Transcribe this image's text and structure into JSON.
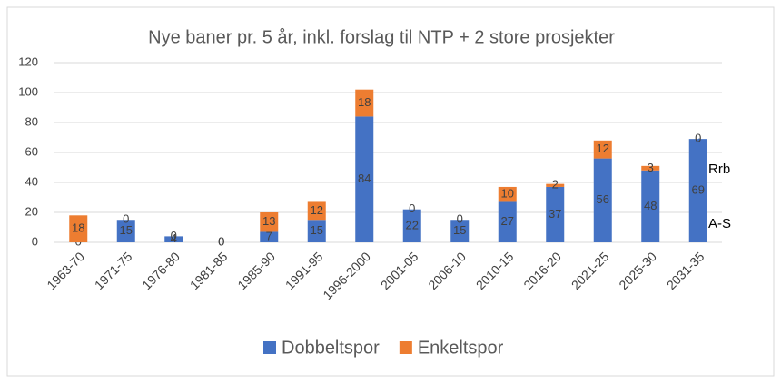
{
  "chart_data": {
    "type": "bar",
    "stacked": true,
    "title": "Nye baner pr. 5 år, inkl. forslag til NTP + 2 store prosjekter",
    "categories": [
      "1963-70",
      "1971-75",
      "1976-80",
      "1981-85",
      "1985-90",
      "1991-95",
      "1996-2000",
      "2001-05",
      "2006-10",
      "2010-15",
      "2016-20",
      "2021-25",
      "2025-30",
      "2031-35"
    ],
    "series": [
      {
        "name": "Dobbeltspor",
        "color": "#4472c4",
        "values": [
          0,
          15,
          4,
          0,
          7,
          15,
          84,
          22,
          15,
          27,
          37,
          56,
          48,
          69
        ]
      },
      {
        "name": "Enkeltspor",
        "color": "#ed7d31",
        "values": [
          18,
          0,
          0,
          0,
          13,
          12,
          18,
          0,
          0,
          10,
          2,
          12,
          3,
          0
        ]
      }
    ],
    "ylim": [
      0,
      120
    ],
    "yticks": [
      0,
      20,
      40,
      60,
      80,
      100,
      120
    ],
    "grid": true,
    "legend": "bottom",
    "annotations": [
      "Rrb",
      "A-S"
    ]
  }
}
